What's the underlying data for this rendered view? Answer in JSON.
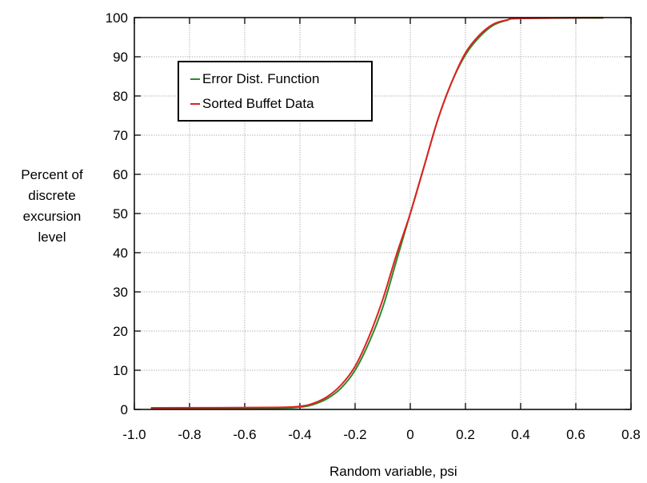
{
  "chart_data": {
    "type": "line",
    "title": "",
    "xlabel": "Random variable, psi",
    "ylabel_lines": [
      "Percent of",
      "discrete",
      "excursion",
      "level"
    ],
    "xlim": [
      -1.0,
      0.8
    ],
    "ylim": [
      0,
      100
    ],
    "x_ticks": [
      -1.0,
      -0.8,
      -0.6,
      -0.4,
      -0.2,
      0,
      0.2,
      0.4,
      0.6,
      0.8
    ],
    "x_tick_labels": [
      "-1.0",
      "-0.8",
      "-0.6",
      "-0.4",
      "-0.2",
      "0",
      "0.2",
      "0.4",
      "0.6",
      "0.8"
    ],
    "y_ticks": [
      0,
      10,
      20,
      30,
      40,
      50,
      60,
      70,
      80,
      90,
      100
    ],
    "y_tick_labels": [
      "0",
      "10",
      "20",
      "30",
      "40",
      "50",
      "60",
      "70",
      "80",
      "90",
      "100"
    ],
    "grid": true,
    "legend_position": "top-left",
    "series": [
      {
        "name": "Error Dist. Function",
        "color": "#2a8a2a",
        "x": [
          -0.94,
          -0.5,
          -0.4,
          -0.35,
          -0.3,
          -0.25,
          -0.2,
          -0.15,
          -0.1,
          -0.05,
          0,
          0.05,
          0.1,
          0.15,
          0.2,
          0.25,
          0.3,
          0.35,
          0.4,
          0.7
        ],
        "y": [
          0.2,
          0.3,
          0.6,
          1.3,
          2.8,
          5.5,
          10,
          17,
          26,
          38,
          50,
          62,
          74,
          83.5,
          90.5,
          95,
          98,
          99.3,
          99.8,
          99.9
        ]
      },
      {
        "name": "Sorted Buffet Data",
        "color": "#e02020",
        "x": [
          -0.94,
          -0.5,
          -0.4,
          -0.35,
          -0.3,
          -0.25,
          -0.2,
          -0.15,
          -0.1,
          -0.05,
          0,
          0.05,
          0.1,
          0.15,
          0.2,
          0.25,
          0.3,
          0.35,
          0.4,
          0.7
        ],
        "y": [
          0.4,
          0.5,
          0.8,
          1.6,
          3.3,
          6.3,
          11,
          18.5,
          28,
          39.5,
          50,
          62,
          74,
          83.5,
          91,
          95.5,
          98.3,
          99.4,
          99.8,
          100
        ]
      }
    ]
  }
}
